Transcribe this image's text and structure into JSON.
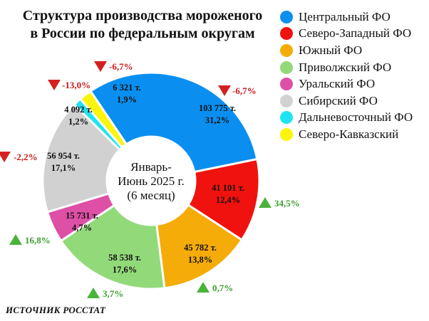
{
  "chart_data": {
    "type": "donut",
    "title": "Структура производства мороженого в России по федеральным округам",
    "center_label": [
      "Январь-",
      "Июнь 2025 г.",
      "(6 месяц)"
    ],
    "series": [
      {
        "name": "Центральный ФО",
        "volume": "103 775 т.",
        "share_label": "31,2%",
        "share": 31.2,
        "change": "-6,7%",
        "direction": "down",
        "color": "#0a8ff0"
      },
      {
        "name": "Северо-Западный ФО",
        "volume": "41 101 т.",
        "share_label": "12,4%",
        "share": 12.4,
        "change": "34,5%",
        "direction": "up",
        "color": "#f0120e"
      },
      {
        "name": "Южный ФО",
        "volume": "45 782 т.",
        "share_label": "13,8%",
        "share": 13.8,
        "change": "0,7%",
        "direction": "up",
        "color": "#f5ac08"
      },
      {
        "name": "Приволжский ФО",
        "volume": "58 538 т.",
        "share_label": "17,6%",
        "share": 17.6,
        "change": "3,7%",
        "direction": "up",
        "color": "#92d97a"
      },
      {
        "name": "Уральский ФО",
        "volume": "15 731 т.",
        "share_label": "4,7%",
        "share": 4.7,
        "change": "16,8%",
        "direction": "up",
        "color": "#de4fa6"
      },
      {
        "name": "Сибирский ФО",
        "volume": "56 954 т.",
        "share_label": "17,1%",
        "share": 17.1,
        "change": "-2,2%",
        "direction": "down",
        "color": "#d1d1d1"
      },
      {
        "name": "Дальневосточный ФО",
        "volume": "4 092 т.",
        "share_label": "1,2%",
        "share": 1.2,
        "change": "-13,0%",
        "direction": "down",
        "color": "#1ee3f0"
      },
      {
        "name": "Северо-Кавказский",
        "volume": "6 321 т.",
        "share_label": "1,9%",
        "share": 1.9,
        "change": "-6,7%",
        "direction": "down",
        "color": "#fbf50c"
      }
    ]
  },
  "title_lines": [
    "Структура производства мороженого",
    "в России по федеральным округам"
  ],
  "source": "ИСТОЧНИК РОССТАТ",
  "colors": {
    "up": "#4bb33c",
    "down": "#d42020",
    "up_text": "#3d9e2e",
    "down_text": "#c81818"
  }
}
